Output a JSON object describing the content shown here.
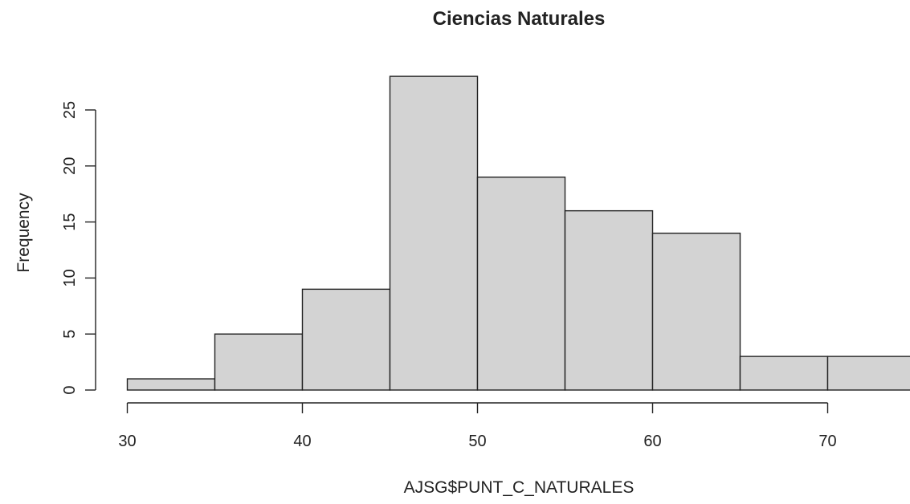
{
  "chart_data": {
    "type": "bar",
    "title": "Ciencias Naturales",
    "xlabel": "AJSG$PUNT_C_NATURALES",
    "ylabel": "Frequency",
    "bins": [
      {
        "start": 30,
        "end": 35,
        "count": 1
      },
      {
        "start": 35,
        "end": 40,
        "count": 5
      },
      {
        "start": 40,
        "end": 45,
        "count": 9
      },
      {
        "start": 45,
        "end": 50,
        "count": 28
      },
      {
        "start": 50,
        "end": 55,
        "count": 19
      },
      {
        "start": 55,
        "end": 60,
        "count": 16
      },
      {
        "start": 60,
        "end": 65,
        "count": 14
      },
      {
        "start": 65,
        "end": 70,
        "count": 3
      },
      {
        "start": 70,
        "end": 75,
        "count": 3
      }
    ],
    "x_ticks": [
      30,
      40,
      50,
      60,
      70
    ],
    "y_ticks": [
      0,
      5,
      10,
      15,
      20,
      25
    ],
    "xlim": [
      30,
      75
    ],
    "ylim": [
      0,
      28
    ],
    "grid": false,
    "colors": {
      "bar_fill": "#d3d3d3",
      "bar_stroke": "#222222"
    }
  }
}
